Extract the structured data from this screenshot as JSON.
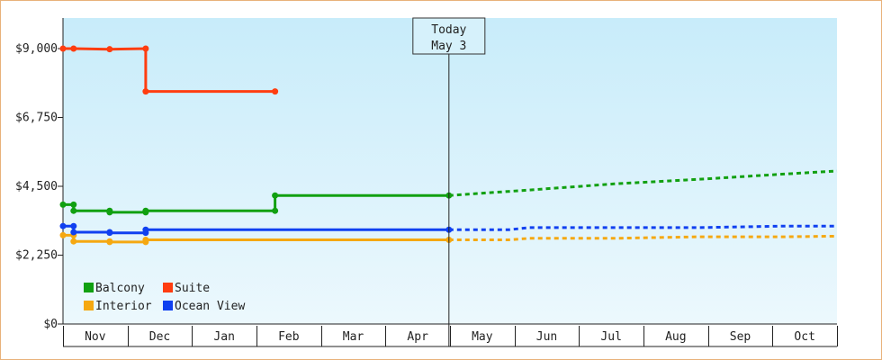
{
  "chart_data": {
    "type": "line",
    "title": "",
    "xlabel": "",
    "ylabel": "",
    "ylim": [
      0,
      10000
    ],
    "y_ticks": [
      {
        "value": 0,
        "label": "$0"
      },
      {
        "value": 2250,
        "label": "$2,250"
      },
      {
        "value": 4500,
        "label": "$4,500"
      },
      {
        "value": 6750,
        "label": "$6,750"
      },
      {
        "value": 9000,
        "label": "$9,000"
      }
    ],
    "months": [
      "Nov",
      "Dec",
      "Jan",
      "Feb",
      "Mar",
      "Apr",
      "May",
      "Jun",
      "Jul",
      "Aug",
      "Sep",
      "Oct"
    ],
    "xlim": [
      0,
      365
    ],
    "today": {
      "x": 182,
      "line1": "Today",
      "line2": "May 3"
    },
    "legend": {
      "placement": "bottom-left"
    },
    "colors": {
      "Balcony": "#11a011",
      "Suite": "#ff3d10",
      "Interior": "#f5a811",
      "Ocean View": "#1040f0"
    },
    "series": [
      {
        "name": "Balcony",
        "history": [
          [
            0,
            3900
          ],
          [
            5,
            3900
          ],
          [
            5,
            3700
          ],
          [
            22,
            3700
          ],
          [
            22,
            3650
          ],
          [
            39,
            3650
          ],
          [
            39,
            3700
          ],
          [
            100,
            3700
          ],
          [
            100,
            4200
          ],
          [
            182,
            4200
          ]
        ],
        "forecast": [
          [
            182,
            4200
          ],
          [
            220,
            4380
          ],
          [
            260,
            4580
          ],
          [
            300,
            4730
          ],
          [
            340,
            4900
          ],
          [
            365,
            5000
          ]
        ]
      },
      {
        "name": "Suite",
        "history": [
          [
            0,
            9000
          ],
          [
            5,
            9000
          ],
          [
            22,
            8980
          ],
          [
            39,
            9000
          ],
          [
            39,
            7600
          ],
          [
            100,
            7600
          ]
        ]
      },
      {
        "name": "Interior",
        "history": [
          [
            0,
            2900
          ],
          [
            5,
            2900
          ],
          [
            5,
            2700
          ],
          [
            22,
            2700
          ],
          [
            22,
            2680
          ],
          [
            39,
            2680
          ],
          [
            39,
            2750
          ],
          [
            182,
            2750
          ]
        ],
        "forecast": [
          [
            182,
            2750
          ],
          [
            210,
            2750
          ],
          [
            220,
            2800
          ],
          [
            260,
            2800
          ],
          [
            300,
            2850
          ],
          [
            340,
            2850
          ],
          [
            365,
            2870
          ]
        ]
      },
      {
        "name": "Ocean View",
        "history": [
          [
            0,
            3200
          ],
          [
            5,
            3200
          ],
          [
            5,
            3000
          ],
          [
            22,
            3000
          ],
          [
            22,
            2980
          ],
          [
            39,
            2980
          ],
          [
            39,
            3080
          ],
          [
            182,
            3080
          ]
        ],
        "forecast": [
          [
            182,
            3080
          ],
          [
            210,
            3080
          ],
          [
            220,
            3150
          ],
          [
            300,
            3150
          ],
          [
            340,
            3200
          ],
          [
            365,
            3200
          ]
        ]
      }
    ]
  }
}
